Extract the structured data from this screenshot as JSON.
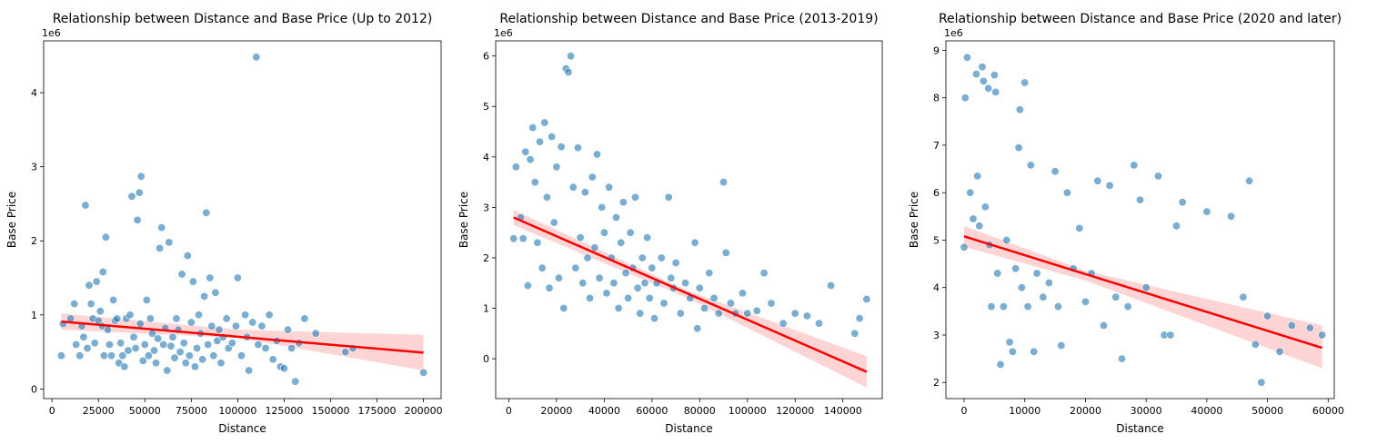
{
  "chart_data": [
    {
      "type": "scatter",
      "title": "Relationship between Distance and Base Price (Up to 2012)",
      "xlabel": "Distance",
      "ylabel": "Base Price",
      "y_offset_label": "1e6",
      "xlim": [
        -4500,
        209500
      ],
      "ylim": [
        -0.13,
        4.7
      ],
      "xticks": [
        0,
        25000,
        50000,
        75000,
        100000,
        125000,
        150000,
        175000,
        200000
      ],
      "xtick_labels": [
        "0",
        "25000",
        "50000",
        "75000",
        "100000",
        "125000",
        "150000",
        "175000",
        "200000"
      ],
      "yticks": [
        0,
        1,
        2,
        3,
        4
      ],
      "ytick_labels": [
        "0",
        "1",
        "2",
        "3",
        "4"
      ],
      "grid": false,
      "point_color": "#1f77b4",
      "regression": {
        "color": "#ff0000",
        "ci_color": "#ffcccc",
        "line": [
          [
            5000,
            0.91
          ],
          [
            200000,
            0.49
          ]
        ],
        "ci_upper": [
          [
            5000,
            1.02
          ],
          [
            100000,
            0.8
          ],
          [
            200000,
            0.73
          ]
        ],
        "ci_lower": [
          [
            5000,
            0.8
          ],
          [
            100000,
            0.69
          ],
          [
            200000,
            0.25
          ]
        ]
      },
      "points": [
        [
          5000,
          0.45
        ],
        [
          6000,
          0.88
        ],
        [
          10000,
          0.95
        ],
        [
          12000,
          1.15
        ],
        [
          13000,
          0.6
        ],
        [
          15000,
          0.45
        ],
        [
          16000,
          0.85
        ],
        [
          17000,
          0.7
        ],
        [
          18000,
          2.48
        ],
        [
          19000,
          0.55
        ],
        [
          20000,
          1.4
        ],
        [
          21000,
          1.15
        ],
        [
          22000,
          0.95
        ],
        [
          23000,
          0.62
        ],
        [
          24000,
          1.45
        ],
        [
          25000,
          0.92
        ],
        [
          26000,
          1.05
        ],
        [
          27000,
          0.85
        ],
        [
          27500,
          1.58
        ],
        [
          28000,
          0.45
        ],
        [
          29000,
          2.05
        ],
        [
          30000,
          0.8
        ],
        [
          31000,
          0.6
        ],
        [
          32000,
          0.45
        ],
        [
          33000,
          1.2
        ],
        [
          34000,
          0.92
        ],
        [
          35000,
          0.95
        ],
        [
          36000,
          0.35
        ],
        [
          37000,
          0.62
        ],
        [
          38000,
          0.45
        ],
        [
          39000,
          0.3
        ],
        [
          40000,
          0.95
        ],
        [
          41000,
          0.52
        ],
        [
          42000,
          1.0
        ],
        [
          43000,
          2.6
        ],
        [
          44000,
          0.7
        ],
        [
          45000,
          0.55
        ],
        [
          46000,
          2.28
        ],
        [
          47000,
          2.65
        ],
        [
          47500,
          0.88
        ],
        [
          48000,
          2.87
        ],
        [
          49000,
          0.38
        ],
        [
          50000,
          0.6
        ],
        [
          51000,
          1.2
        ],
        [
          52000,
          0.45
        ],
        [
          53000,
          0.95
        ],
        [
          54000,
          0.75
        ],
        [
          55000,
          0.52
        ],
        [
          56000,
          0.35
        ],
        [
          57000,
          0.68
        ],
        [
          58000,
          1.9
        ],
        [
          59000,
          2.18
        ],
        [
          60000,
          0.6
        ],
        [
          61000,
          0.82
        ],
        [
          62000,
          0.25
        ],
        [
          63000,
          1.98
        ],
        [
          64000,
          0.58
        ],
        [
          65000,
          0.7
        ],
        [
          66000,
          0.42
        ],
        [
          67000,
          0.95
        ],
        [
          68000,
          0.8
        ],
        [
          69000,
          0.5
        ],
        [
          70000,
          1.55
        ],
        [
          71000,
          0.62
        ],
        [
          72000,
          0.35
        ],
        [
          73000,
          1.8
        ],
        [
          74000,
          0.45
        ],
        [
          75000,
          0.9
        ],
        [
          76000,
          1.45
        ],
        [
          77000,
          0.3
        ],
        [
          78000,
          0.55
        ],
        [
          79000,
          1.0
        ],
        [
          80000,
          0.75
        ],
        [
          81000,
          0.4
        ],
        [
          82000,
          1.25
        ],
        [
          83000,
          2.38
        ],
        [
          84000,
          0.6
        ],
        [
          85000,
          1.5
        ],
        [
          86000,
          0.85
        ],
        [
          87000,
          0.45
        ],
        [
          88000,
          1.3
        ],
        [
          89000,
          0.65
        ],
        [
          90000,
          0.8
        ],
        [
          91000,
          0.35
        ],
        [
          92000,
          0.7
        ],
        [
          94000,
          0.95
        ],
        [
          95000,
          0.55
        ],
        [
          97000,
          0.62
        ],
        [
          99000,
          0.85
        ],
        [
          100000,
          1.5
        ],
        [
          102000,
          0.45
        ],
        [
          104000,
          1.0
        ],
        [
          105000,
          0.7
        ],
        [
          106000,
          0.25
        ],
        [
          108000,
          0.9
        ],
        [
          110000,
          4.48
        ],
        [
          111000,
          0.6
        ],
        [
          113000,
          0.85
        ],
        [
          115000,
          0.55
        ],
        [
          117000,
          1.0
        ],
        [
          119000,
          0.4
        ],
        [
          121000,
          0.65
        ],
        [
          123000,
          0.3
        ],
        [
          125000,
          0.28
        ],
        [
          127000,
          0.8
        ],
        [
          129000,
          0.55
        ],
        [
          131000,
          0.1
        ],
        [
          133000,
          0.62
        ],
        [
          136000,
          0.95
        ],
        [
          142000,
          0.75
        ],
        [
          158000,
          0.5
        ],
        [
          162000,
          0.55
        ],
        [
          200000,
          0.22
        ]
      ]
    },
    {
      "type": "scatter",
      "title": "Relationship between Distance and Base Price (2013-2019)",
      "xlabel": "Distance",
      "ylabel": "Base Price",
      "y_offset_label": "1e6",
      "xlim": [
        -5500,
        156500
      ],
      "ylim": [
        -0.79,
        6.3
      ],
      "xticks": [
        0,
        20000,
        40000,
        60000,
        80000,
        100000,
        120000,
        140000
      ],
      "xtick_labels": [
        "0",
        "20000",
        "40000",
        "60000",
        "80000",
        "100000",
        "120000",
        "140000"
      ],
      "yticks": [
        0,
        1,
        2,
        3,
        4,
        5,
        6
      ],
      "ytick_labels": [
        "0",
        "1",
        "2",
        "3",
        "4",
        "5",
        "6"
      ],
      "grid": false,
      "point_color": "#1f77b4",
      "regression": {
        "color": "#ff0000",
        "ci_color": "#ffcccc",
        "line": [
          [
            2000,
            2.8
          ],
          [
            150000,
            -0.26
          ]
        ],
        "ci_upper": [
          [
            2000,
            2.95
          ],
          [
            75000,
            1.35
          ],
          [
            150000,
            0.05
          ]
        ],
        "ci_lower": [
          [
            2000,
            2.65
          ],
          [
            75000,
            1.2
          ],
          [
            150000,
            -0.57
          ]
        ]
      },
      "points": [
        [
          2000,
          2.38
        ],
        [
          3000,
          3.8
        ],
        [
          5000,
          2.8
        ],
        [
          6000,
          2.38
        ],
        [
          7000,
          4.1
        ],
        [
          8000,
          1.45
        ],
        [
          9000,
          3.95
        ],
        [
          10000,
          4.58
        ],
        [
          11000,
          3.5
        ],
        [
          12000,
          2.3
        ],
        [
          13000,
          4.3
        ],
        [
          14000,
          1.8
        ],
        [
          15000,
          4.68
        ],
        [
          16000,
          3.2
        ],
        [
          17000,
          1.4
        ],
        [
          18000,
          4.4
        ],
        [
          19000,
          2.7
        ],
        [
          20000,
          3.8
        ],
        [
          21000,
          1.6
        ],
        [
          22000,
          4.2
        ],
        [
          23000,
          1.0
        ],
        [
          24000,
          5.75
        ],
        [
          25000,
          5.68
        ],
        [
          26000,
          6.0
        ],
        [
          27000,
          3.4
        ],
        [
          28000,
          1.8
        ],
        [
          29000,
          4.18
        ],
        [
          30000,
          2.4
        ],
        [
          31000,
          1.5
        ],
        [
          32000,
          3.3
        ],
        [
          33000,
          2.0
        ],
        [
          34000,
          1.2
        ],
        [
          35000,
          3.6
        ],
        [
          36000,
          2.2
        ],
        [
          37000,
          4.05
        ],
        [
          38000,
          1.6
        ],
        [
          39000,
          3.0
        ],
        [
          40000,
          2.5
        ],
        [
          41000,
          1.3
        ],
        [
          42000,
          3.4
        ],
        [
          43000,
          2.0
        ],
        [
          44000,
          1.5
        ],
        [
          45000,
          2.8
        ],
        [
          46000,
          1.0
        ],
        [
          47000,
          2.3
        ],
        [
          48000,
          3.1
        ],
        [
          49000,
          1.7
        ],
        [
          50000,
          1.2
        ],
        [
          51000,
          2.5
        ],
        [
          52000,
          1.8
        ],
        [
          53000,
          3.2
        ],
        [
          54000,
          1.4
        ],
        [
          55000,
          0.9
        ],
        [
          56000,
          2.0
        ],
        [
          57000,
          1.5
        ],
        [
          58000,
          2.4
        ],
        [
          59000,
          1.2
        ],
        [
          60000,
          1.8
        ],
        [
          61000,
          0.8
        ],
        [
          62000,
          1.5
        ],
        [
          64000,
          2.0
        ],
        [
          65000,
          1.1
        ],
        [
          67000,
          3.2
        ],
        [
          68000,
          1.6
        ],
        [
          69000,
          1.4
        ],
        [
          70000,
          1.9
        ],
        [
          72000,
          0.9
        ],
        [
          74000,
          1.5
        ],
        [
          76000,
          1.2
        ],
        [
          78000,
          2.3
        ],
        [
          79000,
          0.6
        ],
        [
          80000,
          1.4
        ],
        [
          82000,
          1.0
        ],
        [
          84000,
          1.7
        ],
        [
          86000,
          1.2
        ],
        [
          88000,
          0.9
        ],
        [
          90000,
          3.5
        ],
        [
          91000,
          2.1
        ],
        [
          93000,
          1.1
        ],
        [
          95000,
          0.9
        ],
        [
          98000,
          1.3
        ],
        [
          100000,
          0.9
        ],
        [
          104000,
          0.95
        ],
        [
          107000,
          1.7
        ],
        [
          110000,
          1.1
        ],
        [
          115000,
          0.7
        ],
        [
          120000,
          0.9
        ],
        [
          125000,
          0.85
        ],
        [
          130000,
          0.7
        ],
        [
          135000,
          1.45
        ],
        [
          145000,
          0.5
        ],
        [
          147000,
          0.8
        ],
        [
          150000,
          1.18
        ]
      ]
    },
    {
      "type": "scatter",
      "title": "Relationship between Distance and Base Price (2020 and later)",
      "xlabel": "Distance",
      "ylabel": "Base Price",
      "y_offset_label": "1e6",
      "xlim": [
        -3000,
        61000
      ],
      "ylim": [
        1.66,
        9.2
      ],
      "xticks": [
        0,
        10000,
        20000,
        30000,
        40000,
        50000,
        60000
      ],
      "xtick_labels": [
        "0",
        "10000",
        "20000",
        "30000",
        "40000",
        "50000",
        "60000"
      ],
      "yticks": [
        2,
        3,
        4,
        5,
        6,
        7,
        8,
        9
      ],
      "ytick_labels": [
        "2",
        "3",
        "4",
        "5",
        "6",
        "7",
        "8",
        "9"
      ],
      "grid": false,
      "point_color": "#1f77b4",
      "regression": {
        "color": "#ff0000",
        "ci_color": "#ffcccc",
        "line": [
          [
            0,
            5.08
          ],
          [
            59000,
            2.73
          ]
        ],
        "ci_upper": [
          [
            0,
            5.3
          ],
          [
            20000,
            4.35
          ],
          [
            59000,
            3.2
          ]
        ],
        "ci_lower": [
          [
            0,
            4.86
          ],
          [
            20000,
            4.15
          ],
          [
            59000,
            2.3
          ]
        ]
      },
      "points": [
        [
          0,
          4.85
        ],
        [
          200,
          8.0
        ],
        [
          500,
          8.85
        ],
        [
          1000,
          6.0
        ],
        [
          1500,
          5.45
        ],
        [
          2000,
          8.5
        ],
        [
          2200,
          6.35
        ],
        [
          2500,
          5.3
        ],
        [
          3000,
          8.65
        ],
        [
          3200,
          8.35
        ],
        [
          3500,
          5.7
        ],
        [
          4000,
          8.2
        ],
        [
          4200,
          4.9
        ],
        [
          4500,
          3.6
        ],
        [
          5000,
          8.48
        ],
        [
          5200,
          8.12
        ],
        [
          5500,
          4.3
        ],
        [
          6000,
          2.38
        ],
        [
          6500,
          3.6
        ],
        [
          7000,
          5.0
        ],
        [
          7500,
          2.85
        ],
        [
          8000,
          2.65
        ],
        [
          8500,
          4.4
        ],
        [
          9000,
          6.95
        ],
        [
          9200,
          7.75
        ],
        [
          9500,
          4.0
        ],
        [
          10000,
          8.32
        ],
        [
          10500,
          3.6
        ],
        [
          11000,
          6.58
        ],
        [
          11500,
          2.65
        ],
        [
          12000,
          4.3
        ],
        [
          13000,
          3.8
        ],
        [
          14000,
          4.1
        ],
        [
          15000,
          6.45
        ],
        [
          15500,
          3.6
        ],
        [
          16000,
          2.78
        ],
        [
          17000,
          6.0
        ],
        [
          18000,
          4.4
        ],
        [
          19000,
          5.25
        ],
        [
          20000,
          3.7
        ],
        [
          21000,
          4.3
        ],
        [
          22000,
          6.25
        ],
        [
          23000,
          3.2
        ],
        [
          24000,
          6.15
        ],
        [
          25000,
          3.8
        ],
        [
          26000,
          2.5
        ],
        [
          27000,
          3.6
        ],
        [
          28000,
          6.58
        ],
        [
          29000,
          5.85
        ],
        [
          30000,
          4.0
        ],
        [
          32000,
          6.35
        ],
        [
          33000,
          3.0
        ],
        [
          34000,
          3.0
        ],
        [
          35000,
          5.3
        ],
        [
          36000,
          5.8
        ],
        [
          40000,
          5.6
        ],
        [
          44000,
          5.5
        ],
        [
          46000,
          3.8
        ],
        [
          47000,
          6.25
        ],
        [
          48000,
          2.8
        ],
        [
          49000,
          2.0
        ],
        [
          50000,
          3.4
        ],
        [
          52000,
          2.65
        ],
        [
          54000,
          3.2
        ],
        [
          57000,
          3.15
        ],
        [
          59000,
          3.0
        ]
      ]
    }
  ]
}
